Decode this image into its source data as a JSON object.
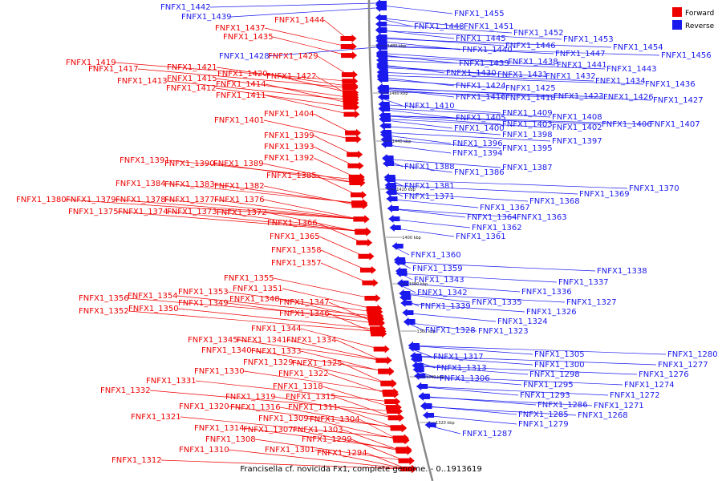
{
  "colors": {
    "forward": "#ee0000",
    "reverse": "#1a1aee",
    "backbone": "#888888",
    "text": "#000000"
  },
  "legend": {
    "forward": "Forward",
    "reverse": "Reverse"
  },
  "footer": "Francisella cf. novicida Fx1, complete genome. - 0..1913619",
  "ticks": [
    "1480 kbp",
    "1460 kbp",
    "1440 kbp",
    "1420 kbp",
    "1400 kbp",
    "1380 kbp",
    "1360 kbp",
    "1340 kbp",
    "1320 kbp"
  ],
  "forward_genes": [
    "FNFX1_1444",
    "FNFX1_1437",
    "FNFX1_1435",
    "FNFX1_1429",
    "FNFX1_1419",
    "FNFX1_1417",
    "FNFX1_1421",
    "FNFX1_1420",
    "FNFX1_1422",
    "FNFX1_1415",
    "FNFX1_1413",
    "FNFX1_1414",
    "FNFX1_1412",
    "FNFX1_1411",
    "FNFX1_1404",
    "FNFX1_1401",
    "FNFX1_1399",
    "FNFX1_1393",
    "FNFX1_1392",
    "FNFX1_1391",
    "FNFX1_1390",
    "FNFX1_1389",
    "FNFX1_1385",
    "FNFX1_1384",
    "FNFX1_1383",
    "FNFX1_1382",
    "FNFX1_1380",
    "FNFX1_1379",
    "FNFX1_1378",
    "FNFX1_1377",
    "FNFX1_1376",
    "FNFX1_1375",
    "FNFX1_1374",
    "FNFX1_1373",
    "FNFX1_1372",
    "FNFX1_1366",
    "FNFX1_1365",
    "FNFX1_1358",
    "FNFX1_1357",
    "FNFX1_1355",
    "FNFX1_1351",
    "FNFX1_1353",
    "FNFX1_1354",
    "FNFX1_1356",
    "FNFX1_1348",
    "FNFX1_1349",
    "FNFX1_1350",
    "FNFX1_1352",
    "FNFX1_1347",
    "FNFX1_1346",
    "FNFX1_1344",
    "FNFX1_1345",
    "FNFX1_1341",
    "FNFX1_1334",
    "FNFX1_1340",
    "FNFX1_1333",
    "FNFX1_1329",
    "FNFX1_1325",
    "FNFX1_1322",
    "FNFX1_1330",
    "FNFX1_1331",
    "FNFX1_1332",
    "FNFX1_1318",
    "FNFX1_1319",
    "FNFX1_1315",
    "FNFX1_1320",
    "FNFX1_1316",
    "FNFX1_1311",
    "FNFX1_1321",
    "FNFX1_1309",
    "FNFX1_1304",
    "FNFX1_1314",
    "FNFX1_1307",
    "FNFX1_1303",
    "FNFX1_1308",
    "FNFX1_1299",
    "FNFX1_1310",
    "FNFX1_1301",
    "FNFX1_1294",
    "FNFX1_1312"
  ],
  "reverse_genes": [
    "FNFX1_1442",
    "FNFX1_1439",
    "FNFX1_1428",
    "FNFX1_1455",
    "FNFX1_1448",
    "FNFX1_1451",
    "FNFX1_1452",
    "FNFX1_1453",
    "FNFX1_1445",
    "FNFX1_1446",
    "FNFX1_1454",
    "FNFX1_1440",
    "FNFX1_1447",
    "FNFX1_1456",
    "FNFX1_1433",
    "FNFX1_1438",
    "FNFX1_1441",
    "FNFX1_1443",
    "FNFX1_1430",
    "FNFX1_1431",
    "FNFX1_1432",
    "FNFX1_1434",
    "FNFX1_1436",
    "FNFX1_1424",
    "FNFX1_1425",
    "FNFX1_1416",
    "FNFX1_1418",
    "FNFX1_1423",
    "FNFX1_1426",
    "FNFX1_1427",
    "FNFX1_1410",
    "FNFX1_1405",
    "FNFX1_1409",
    "FNFX1_1408",
    "FNFX1_1403",
    "FNFX1_1400",
    "FNFX1_1402",
    "FNFX1_1406",
    "FNFX1_1407",
    "FNFX1_1398",
    "FNFX1_1396",
    "FNFX1_1397",
    "FNFX1_1395",
    "FNFX1_1394",
    "FNFX1_1388",
    "FNFX1_1387",
    "FNFX1_1386",
    "FNFX1_1381",
    "FNFX1_1370",
    "FNFX1_1371",
    "FNFX1_1369",
    "FNFX1_1368",
    "FNFX1_1367",
    "FNFX1_1364",
    "FNFX1_1363",
    "FNFX1_1362",
    "FNFX1_1361",
    "FNFX1_1360",
    "FNFX1_1359",
    "FNFX1_1343",
    "FNFX1_1338",
    "FNFX1_1337",
    "FNFX1_1342",
    "FNFX1_1336",
    "FNFX1_1335",
    "FNFX1_1327",
    "FNFX1_1339",
    "FNFX1_1326",
    "FNFX1_1324",
    "FNFX1_1328",
    "FNFX1_1323",
    "FNFX1_1317",
    "FNFX1_1305",
    "FNFX1_1313",
    "FNFX1_1300",
    "FNFX1_1280",
    "FNFX1_1277",
    "FNFX1_1306",
    "FNFX1_1298",
    "FNFX1_1276",
    "FNFX1_1295",
    "FNFX1_1274",
    "FNFX1_1293",
    "FNFX1_1272",
    "FNFX1_1286",
    "FNFX1_1271",
    "FNFX1_1285",
    "FNFX1_1268",
    "FNFX1_1279",
    "FNFX1_1287"
  ]
}
